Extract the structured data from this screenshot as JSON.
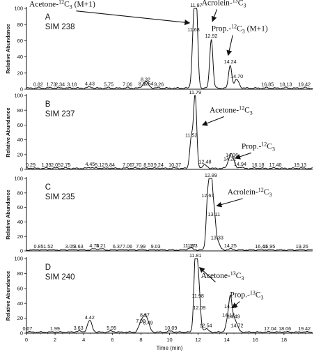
{
  "chart_data": [
    {
      "type": "line",
      "panel": "A",
      "channel": "SIM 238",
      "xlabel": "",
      "ylabel": "Relative Abundance",
      "xlim": [
        0,
        20
      ],
      "ylim": [
        0,
        100
      ],
      "yticks": [
        0,
        20,
        40,
        60,
        80,
        100
      ],
      "peaks": [
        {
          "x": 0.82,
          "y": 2
        },
        {
          "x": 1.73,
          "y": 2
        },
        {
          "x": 2.34,
          "y": 2
        },
        {
          "x": 3.18,
          "y": 2
        },
        {
          "x": 4.43,
          "y": 3
        },
        {
          "x": 5.75,
          "y": 2
        },
        {
          "x": 7.06,
          "y": 2
        },
        {
          "x": 8.17,
          "y": 3
        },
        {
          "x": 8.32,
          "y": 8
        },
        {
          "x": 8.54,
          "y": 3
        },
        {
          "x": 9.26,
          "y": 2
        },
        {
          "x": 11.68,
          "y": 70
        },
        {
          "x": 11.87,
          "y": 100
        },
        {
          "x": 12.92,
          "y": 62
        },
        {
          "x": 14.24,
          "y": 30
        },
        {
          "x": 14.7,
          "y": 12
        },
        {
          "x": 16.85,
          "y": 2
        },
        {
          "x": 18.13,
          "y": 2
        },
        {
          "x": 19.42,
          "y": 2
        }
      ],
      "peak_labels": [
        {
          "x": 0.82,
          "text": "0.82"
        },
        {
          "x": 1.73,
          "text": "1.73"
        },
        {
          "x": 2.34,
          "text": "2.34"
        },
        {
          "x": 3.18,
          "text": "3.18"
        },
        {
          "x": 4.43,
          "text": "4.43"
        },
        {
          "x": 5.75,
          "text": "5.75"
        },
        {
          "x": 7.06,
          "text": "7.06"
        },
        {
          "x": 8.17,
          "text": "8.17"
        },
        {
          "x": 8.32,
          "text": "8.32"
        },
        {
          "x": 8.54,
          "text": "8.54"
        },
        {
          "x": 9.26,
          "text": "9.26"
        },
        {
          "x": 11.68,
          "text": "11.68"
        },
        {
          "x": 11.87,
          "text": "11.87"
        },
        {
          "x": 12.92,
          "text": "12.92"
        },
        {
          "x": 14.24,
          "text": "14.24"
        },
        {
          "x": 14.7,
          "text": "14.70"
        },
        {
          "x": 16.85,
          "text": "16.85"
        },
        {
          "x": 18.13,
          "text": "18.13"
        },
        {
          "x": 19.42,
          "text": "19.42"
        }
      ],
      "annotations": [
        {
          "pre": "Acetone-",
          "sup": "12",
          "post": "C",
          "sub": "3",
          "tail": " (M+1)",
          "x": 2.5,
          "y": 102,
          "ax": 11.4,
          "ay": 82
        },
        {
          "pre": "Acrolein-",
          "sup": "13",
          "post": "C",
          "sub": "3",
          "tail": "",
          "x": 13.8,
          "y": 104,
          "ax": 13.0,
          "ay": 84
        },
        {
          "pre": "Prop.-",
          "sup": "12",
          "post": "C",
          "sub": "3",
          "tail": " (M+1)",
          "x": 14.9,
          "y": 72,
          "ax": 14.1,
          "ay": 42
        }
      ]
    },
    {
      "type": "line",
      "panel": "B",
      "channel": "SIM 237",
      "xlabel": "",
      "ylabel": "Relative Abundance",
      "xlim": [
        0,
        20
      ],
      "ylim": [
        0,
        100
      ],
      "yticks": [
        0,
        20,
        40,
        60,
        80,
        100
      ],
      "peaks": [
        {
          "x": 0.29,
          "y": 2
        },
        {
          "x": 1.39,
          "y": 2
        },
        {
          "x": 2.05,
          "y": 2
        },
        {
          "x": 2.75,
          "y": 2
        },
        {
          "x": 4.45,
          "y": 3
        },
        {
          "x": 5.12,
          "y": 2
        },
        {
          "x": 5.84,
          "y": 2
        },
        {
          "x": 7.06,
          "y": 2
        },
        {
          "x": 7.7,
          "y": 2
        },
        {
          "x": 8.53,
          "y": 2
        },
        {
          "x": 9.24,
          "y": 2
        },
        {
          "x": 10.37,
          "y": 2
        },
        {
          "x": 11.52,
          "y": 42
        },
        {
          "x": 11.79,
          "y": 100
        },
        {
          "x": 12.48,
          "y": 6
        },
        {
          "x": 14.21,
          "y": 10
        },
        {
          "x": 14.36,
          "y": 15
        },
        {
          "x": 14.94,
          "y": 3
        },
        {
          "x": 16.18,
          "y": 2
        },
        {
          "x": 17.4,
          "y": 2
        },
        {
          "x": 19.13,
          "y": 2
        }
      ],
      "peak_labels": [
        {
          "x": 0.29,
          "text": "0.29"
        },
        {
          "x": 1.39,
          "text": "1.39"
        },
        {
          "x": 2.05,
          "text": "2.05"
        },
        {
          "x": 2.75,
          "text": "2.75"
        },
        {
          "x": 4.45,
          "text": "4.45"
        },
        {
          "x": 5.12,
          "text": "5.12"
        },
        {
          "x": 5.84,
          "text": "5.84"
        },
        {
          "x": 7.06,
          "text": "7.06"
        },
        {
          "x": 7.7,
          "text": "7.70"
        },
        {
          "x": 8.53,
          "text": "8.53"
        },
        {
          "x": 9.24,
          "text": "9.24"
        },
        {
          "x": 10.37,
          "text": "10.37"
        },
        {
          "x": 11.52,
          "text": "11.52"
        },
        {
          "x": 11.79,
          "text": "11.79"
        },
        {
          "x": 12.48,
          "text": "12.48"
        },
        {
          "x": 14.21,
          "text": "14.21"
        },
        {
          "x": 14.36,
          "text": "14.36"
        },
        {
          "x": 14.94,
          "text": "14.94"
        },
        {
          "x": 16.18,
          "text": "16.18"
        },
        {
          "x": 17.4,
          "text": "17.40"
        },
        {
          "x": 19.13,
          "text": "19.13"
        }
      ],
      "annotations": [
        {
          "pre": "Acetone-",
          "sup": "12",
          "post": "C",
          "sub": "3",
          "tail": "",
          "x": 14.3,
          "y": 77,
          "ax": 12.3,
          "ay": 60
        },
        {
          "pre": "Prop.-",
          "sup": "12",
          "post": "C",
          "sub": "3",
          "tail": "",
          "x": 16.2,
          "y": 28,
          "ax": 14.6,
          "ay": 15
        }
      ]
    },
    {
      "type": "line",
      "panel": "C",
      "channel": "SIM 235",
      "xlabel": "",
      "ylabel": "Relative Abundance",
      "xlim": [
        0,
        20
      ],
      "ylim": [
        0,
        100
      ],
      "yticks": [
        0,
        20,
        40,
        60,
        80,
        100
      ],
      "peaks": [
        {
          "x": 0.85,
          "y": 2
        },
        {
          "x": 1.52,
          "y": 2
        },
        {
          "x": 3.05,
          "y": 2
        },
        {
          "x": 3.63,
          "y": 2
        },
        {
          "x": 4.74,
          "y": 3
        },
        {
          "x": 5.21,
          "y": 3
        },
        {
          "x": 6.37,
          "y": 2
        },
        {
          "x": 7.06,
          "y": 2
        },
        {
          "x": 7.99,
          "y": 2
        },
        {
          "x": 9.03,
          "y": 2
        },
        {
          "x": 11.37,
          "y": 3
        },
        {
          "x": 11.53,
          "y": 3
        },
        {
          "x": 12.67,
          "y": 72
        },
        {
          "x": 12.89,
          "y": 100
        },
        {
          "x": 13.11,
          "y": 46
        },
        {
          "x": 13.33,
          "y": 14
        },
        {
          "x": 14.25,
          "y": 3
        },
        {
          "x": 16.41,
          "y": 2
        },
        {
          "x": 16.95,
          "y": 2
        },
        {
          "x": 19.26,
          "y": 2
        }
      ],
      "peak_labels": [
        {
          "x": 0.85,
          "text": "0.85"
        },
        {
          "x": 1.52,
          "text": "1.52"
        },
        {
          "x": 3.05,
          "text": "3.05"
        },
        {
          "x": 3.63,
          "text": "3.63"
        },
        {
          "x": 4.74,
          "text": "4.74"
        },
        {
          "x": 5.21,
          "text": "5.21"
        },
        {
          "x": 6.37,
          "text": "6.37"
        },
        {
          "x": 7.06,
          "text": "7.06"
        },
        {
          "x": 7.99,
          "text": "7.99"
        },
        {
          "x": 9.03,
          "text": "9.03"
        },
        {
          "x": 11.37,
          "text": "11.37"
        },
        {
          "x": 11.53,
          "text": "11.53"
        },
        {
          "x": 12.67,
          "text": "12.67"
        },
        {
          "x": 12.89,
          "text": "12.89"
        },
        {
          "x": 13.11,
          "text": "13.11"
        },
        {
          "x": 13.33,
          "text": "13.33"
        },
        {
          "x": 14.25,
          "text": "14.25"
        },
        {
          "x": 16.41,
          "text": "16.41"
        },
        {
          "x": 16.95,
          "text": "16.95"
        },
        {
          "x": 19.26,
          "text": "19.26"
        }
      ],
      "annotations": [
        {
          "pre": "Acrolein-",
          "sup": "12",
          "post": "C",
          "sub": "3",
          "tail": "",
          "x": 15.6,
          "y": 78,
          "ax": 13.3,
          "ay": 62
        }
      ]
    },
    {
      "type": "line",
      "panel": "D",
      "channel": "SIM 240",
      "xlabel": "Time (min)",
      "ylabel": "Relative Abundance",
      "xlim": [
        0,
        20
      ],
      "ylim": [
        0,
        100
      ],
      "xticks": [
        0,
        2,
        4,
        6,
        8,
        10,
        12,
        14,
        16,
        18
      ],
      "yticks": [
        0,
        20,
        40,
        60,
        80,
        100
      ],
      "peaks": [
        {
          "x": 0.07,
          "y": 2
        },
        {
          "x": 1.99,
          "y": 2
        },
        {
          "x": 3.63,
          "y": 3
        },
        {
          "x": 4.42,
          "y": 17
        },
        {
          "x": 5.95,
          "y": 3
        },
        {
          "x": 7.99,
          "y": 12
        },
        {
          "x": 8.27,
          "y": 20
        },
        {
          "x": 8.49,
          "y": 10
        },
        {
          "x": 10.09,
          "y": 3
        },
        {
          "x": 11.81,
          "y": 100
        },
        {
          "x": 11.98,
          "y": 46
        },
        {
          "x": 12.09,
          "y": 30
        },
        {
          "x": 12.54,
          "y": 6
        },
        {
          "x": 14.12,
          "y": 20
        },
        {
          "x": 14.26,
          "y": 32
        },
        {
          "x": 14.49,
          "y": 18
        },
        {
          "x": 14.72,
          "y": 6
        },
        {
          "x": 17.04,
          "y": 2
        },
        {
          "x": 18.06,
          "y": 2
        },
        {
          "x": 19.42,
          "y": 2
        }
      ],
      "peak_labels": [
        {
          "x": 0.07,
          "text": "0.07"
        },
        {
          "x": 1.99,
          "text": "1.99"
        },
        {
          "x": 3.63,
          "text": "3.63"
        },
        {
          "x": 4.42,
          "text": "4.42"
        },
        {
          "x": 5.95,
          "text": "5.95"
        },
        {
          "x": 7.99,
          "text": "7.99"
        },
        {
          "x": 8.27,
          "text": "8.27"
        },
        {
          "x": 8.49,
          "text": "8.49"
        },
        {
          "x": 10.09,
          "text": "10.09"
        },
        {
          "x": 11.81,
          "text": "11.81"
        },
        {
          "x": 11.98,
          "text": "11.98"
        },
        {
          "x": 12.09,
          "text": "12.09"
        },
        {
          "x": 12.54,
          "text": "12.54"
        },
        {
          "x": 14.12,
          "text": "14.12"
        },
        {
          "x": 14.26,
          "text": "14.26"
        },
        {
          "x": 14.49,
          "text": "14.49"
        },
        {
          "x": 14.72,
          "text": "14.72"
        },
        {
          "x": 17.04,
          "text": "17.04"
        },
        {
          "x": 18.06,
          "text": "18.06"
        },
        {
          "x": 19.42,
          "text": "19.42"
        }
      ],
      "annotations": [
        {
          "pre": "Acetone-",
          "sup": "13",
          "post": "C",
          "sub": "3",
          "tail": "",
          "x": 13.7,
          "y": 74,
          "ax": 12.1,
          "ay": 88
        },
        {
          "pre": "Prop.-",
          "sup": "13",
          "post": "C",
          "sub": "3",
          "tail": "",
          "x": 15.4,
          "y": 48,
          "ax": 14.4,
          "ay": 34
        }
      ]
    }
  ]
}
